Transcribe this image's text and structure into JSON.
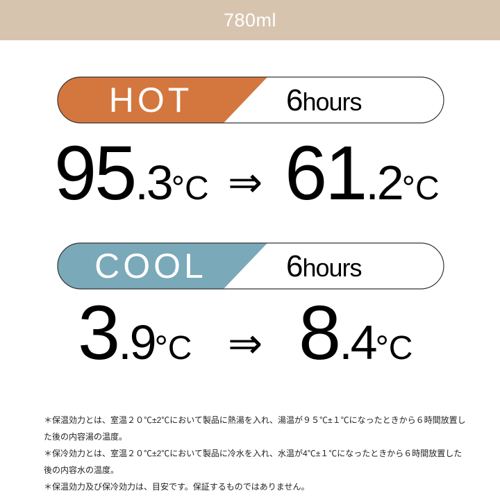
{
  "header": {
    "capacity": "780ml"
  },
  "colors": {
    "header": "#d7c4af",
    "hot": "#d4773e",
    "cool": "#7aa9b9"
  },
  "hot": {
    "label": "HOT",
    "duration_num": "6",
    "duration_unit": "hours",
    "start": {
      "int": "95",
      "dec": ".3",
      "unit": "°C"
    },
    "arrow": "⇒",
    "end": {
      "int": "61",
      "dec": ".2",
      "unit": "°C"
    }
  },
  "cool": {
    "label": "COOL",
    "duration_num": "6",
    "duration_unit": "hours",
    "start": {
      "int": "3",
      "dec": ".9",
      "unit": "°C"
    },
    "arrow": "⇒",
    "end": {
      "int": "8",
      "dec": ".4",
      "unit": "°C"
    }
  },
  "notes": [
    "＊保温効力とは、室温２０℃±2℃において製品に熱湯を入れ、湯温が９５℃±１℃になったときから６時間放置した後の内容湯の温度。",
    "＊保冷効力とは、室温２０℃±2℃において製品に冷水を入れ、水温が4℃±１℃になったときから６時間放置した後の内容水の温度。",
    "＊保温効力及び保冷効力は、目安です。保証するものではありません。"
  ]
}
